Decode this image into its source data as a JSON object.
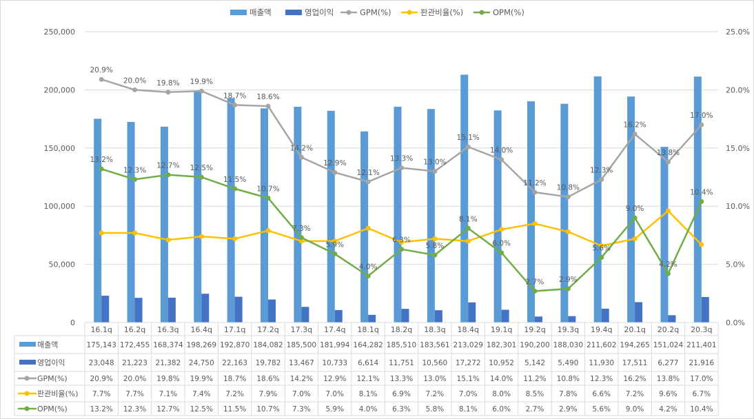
{
  "chart_data": {
    "type": "bar+line",
    "categories": [
      "16.1q",
      "16.2q",
      "16.3q",
      "16.4q",
      "17.1q",
      "17.2q",
      "17.3q",
      "17.4q",
      "18.1q",
      "18.2q",
      "18.3q",
      "18.4q",
      "19.1q",
      "19.2q",
      "19.3q",
      "19.4q",
      "20.1q",
      "20.2q",
      "20.3q"
    ],
    "left_axis": {
      "min": 0,
      "max": 250000,
      "ticks": [
        "0",
        "50,000",
        "100,000",
        "150,000",
        "200,000",
        "250,000"
      ]
    },
    "right_axis": {
      "min": 0,
      "max": 25,
      "ticks": [
        "0.0%",
        "5.0%",
        "10.0%",
        "15.0%",
        "20.0%",
        "25.0%"
      ]
    },
    "grid": true,
    "legend_position": "top",
    "series": [
      {
        "name": "매출액",
        "kind": "bar",
        "axis": "left",
        "color": "#5B9BD5",
        "values": [
          175143,
          172455,
          168374,
          198269,
          192870,
          184082,
          185500,
          181994,
          164282,
          185510,
          183561,
          213029,
          182301,
          190200,
          188030,
          211602,
          194265,
          151024,
          211401
        ],
        "labels": [
          "175,143",
          "172,455",
          "168,374",
          "198,269",
          "192,870",
          "184,082",
          "185,500",
          "181,994",
          "164,282",
          "185,510",
          "183,561",
          "213,029",
          "182,301",
          "190,200",
          "188,030",
          "211,602",
          "194,265",
          "151,024",
          "211,401"
        ]
      },
      {
        "name": "영업이익",
        "kind": "bar",
        "axis": "left",
        "color": "#4472C4",
        "values": [
          23048,
          21223,
          21382,
          24750,
          22163,
          19782,
          13467,
          10733,
          6614,
          11751,
          10560,
          17272,
          10952,
          5142,
          5490,
          11930,
          17511,
          6277,
          21916
        ],
        "labels": [
          "23,048",
          "21,223",
          "21,382",
          "24,750",
          "22,163",
          "19,782",
          "13,467",
          "10,733",
          "6,614",
          "11,751",
          "10,560",
          "17,272",
          "10,952",
          "5,142",
          "5,490",
          "11,930",
          "17,511",
          "6,277",
          "21,916"
        ]
      },
      {
        "name": "GPM(%)",
        "kind": "line",
        "axis": "right",
        "color": "#A5A5A5",
        "show_point_labels": true,
        "values": [
          20.9,
          20.0,
          19.8,
          19.9,
          18.7,
          18.6,
          14.2,
          12.9,
          12.1,
          13.3,
          13.0,
          15.1,
          14.0,
          11.2,
          10.8,
          12.3,
          16.2,
          13.8,
          17.0
        ],
        "labels": [
          "20.9%",
          "20.0%",
          "19.8%",
          "19.9%",
          "18.7%",
          "18.6%",
          "14.2%",
          "12.9%",
          "12.1%",
          "13.3%",
          "13.0%",
          "15.1%",
          "14.0%",
          "11.2%",
          "10.8%",
          "12.3%",
          "16.2%",
          "13.8%",
          "17.0%"
        ]
      },
      {
        "name": "판관비율(%)",
        "kind": "line",
        "axis": "right",
        "color": "#FFC000",
        "show_point_labels": false,
        "values": [
          7.7,
          7.7,
          7.1,
          7.4,
          7.2,
          7.9,
          7.0,
          7.0,
          8.1,
          6.9,
          7.2,
          7.0,
          8.0,
          8.5,
          7.8,
          6.6,
          7.2,
          9.6,
          6.7
        ],
        "labels": [
          "7.7%",
          "7.7%",
          "7.1%",
          "7.4%",
          "7.2%",
          "7.9%",
          "7.0%",
          "7.0%",
          "8.1%",
          "6.9%",
          "7.2%",
          "7.0%",
          "8.0%",
          "8.5%",
          "7.8%",
          "6.6%",
          "7.2%",
          "9.6%",
          "6.7%"
        ]
      },
      {
        "name": "OPM(%)",
        "kind": "line",
        "axis": "right",
        "color": "#70AD47",
        "show_point_labels": true,
        "values": [
          13.2,
          12.3,
          12.7,
          12.5,
          11.5,
          10.7,
          7.3,
          5.9,
          4.0,
          6.3,
          5.8,
          8.1,
          6.0,
          2.7,
          2.9,
          5.6,
          9.0,
          4.2,
          10.4
        ],
        "labels": [
          "13.2%",
          "12.3%",
          "12.7%",
          "12.5%",
          "11.5%",
          "10.7%",
          "7.3%",
          "5.9%",
          "4.0%",
          "6.3%",
          "5.8%",
          "8.1%",
          "6.0%",
          "2.7%",
          "2.9%",
          "5.6%",
          "9.0%",
          "4.2%",
          "10.4%"
        ]
      }
    ]
  }
}
